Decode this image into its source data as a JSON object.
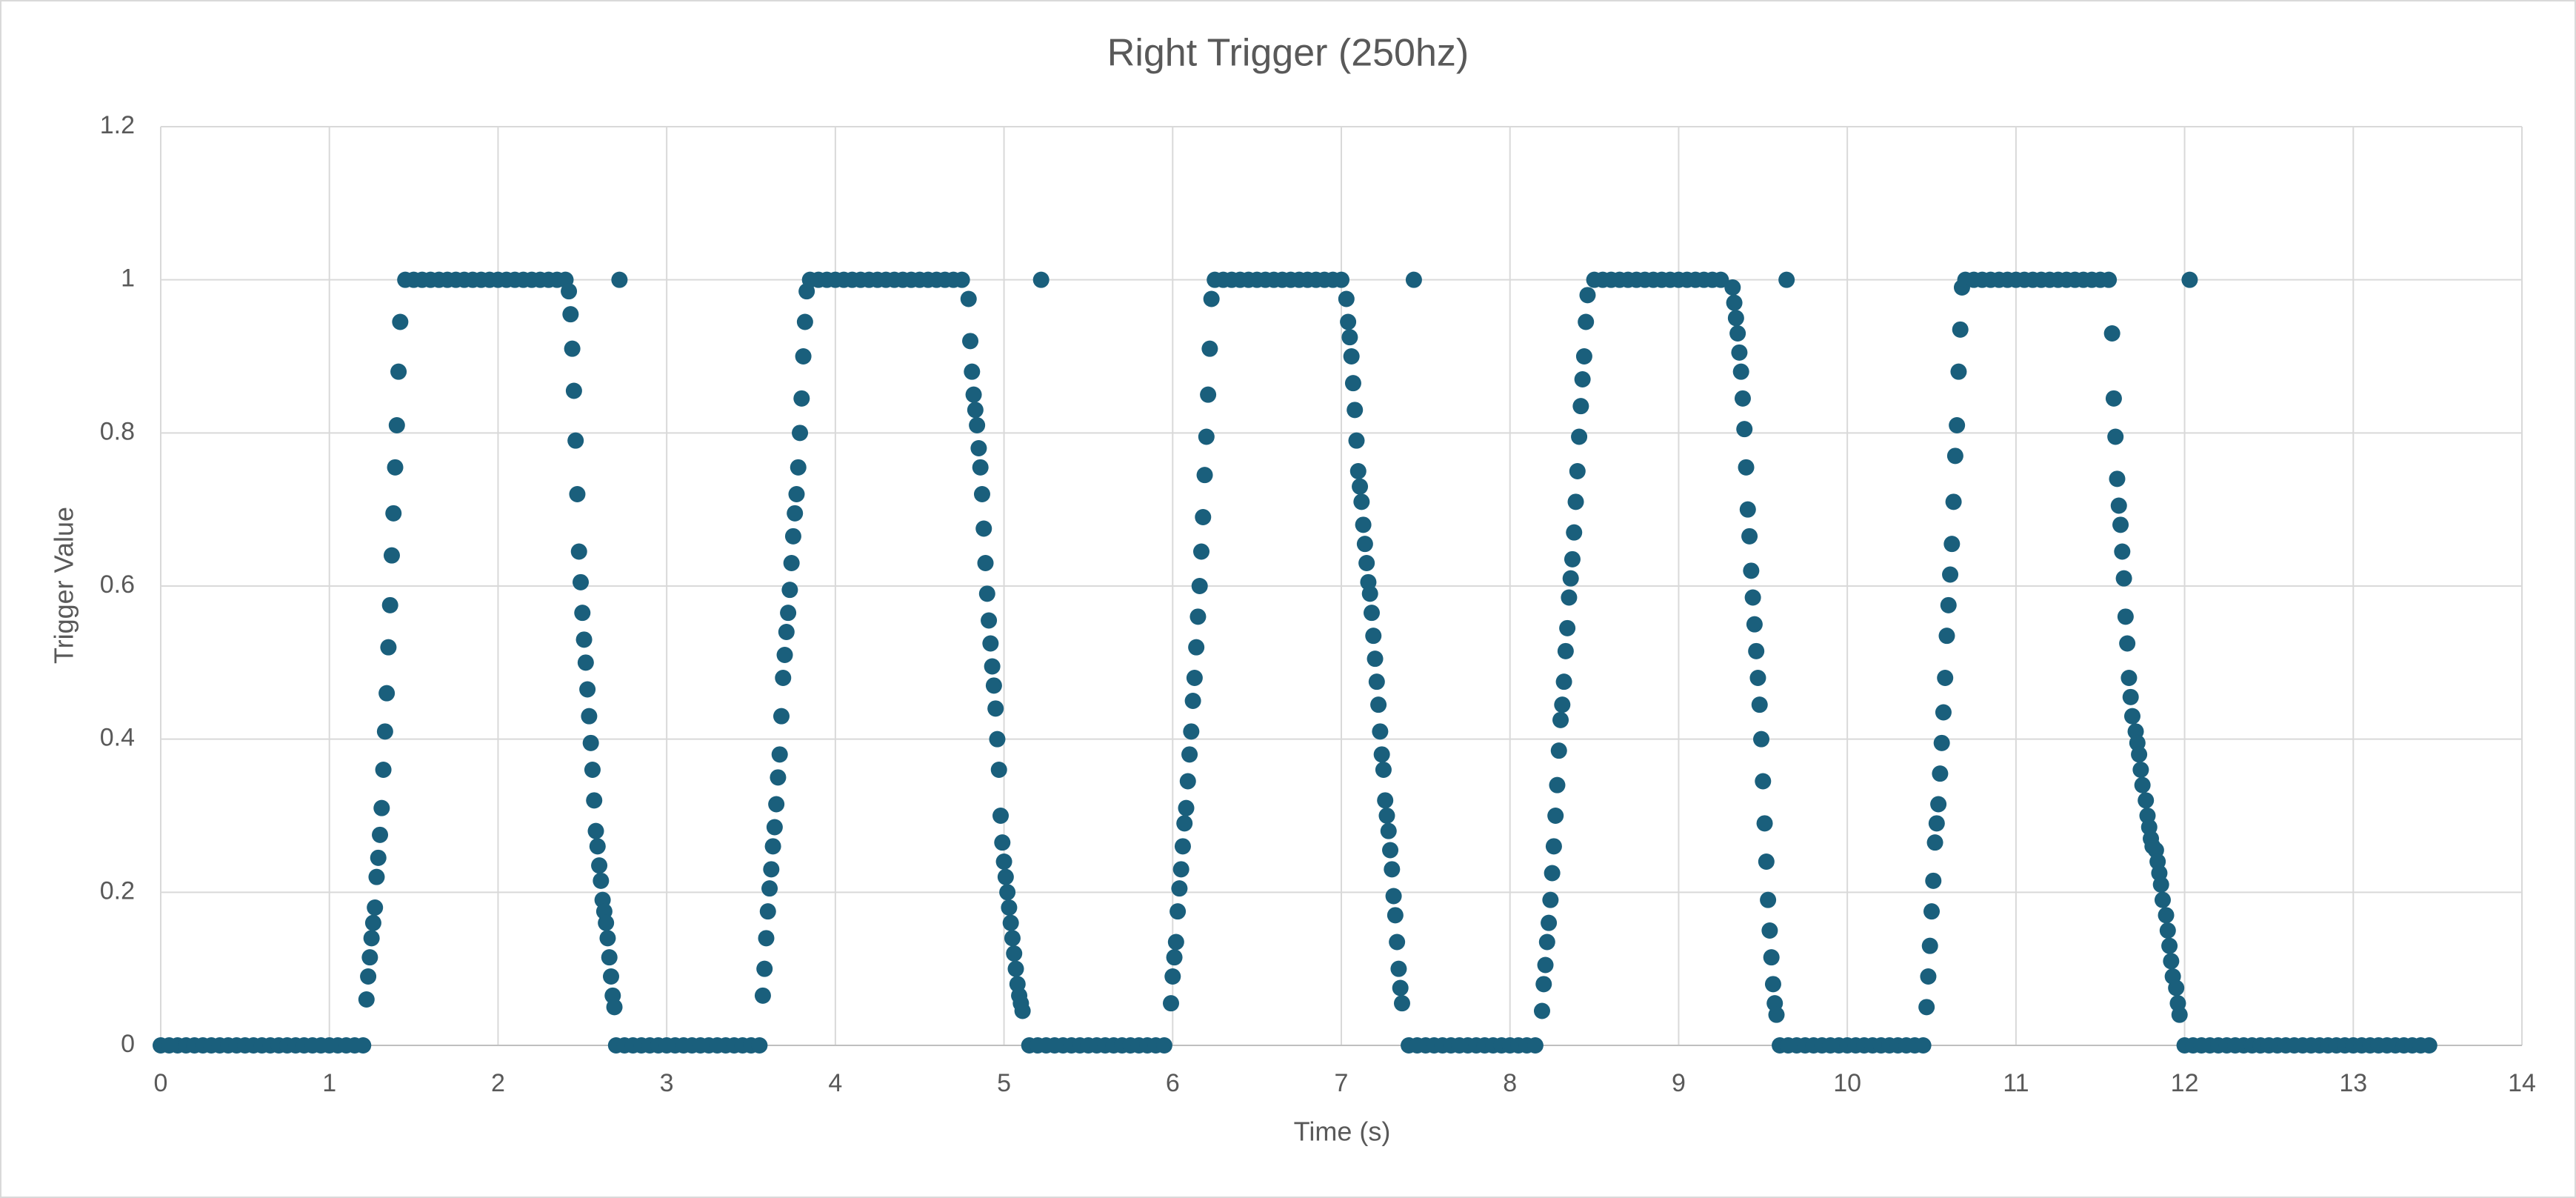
{
  "chart_data": {
    "type": "scatter",
    "title": "Right Trigger (250hz)",
    "x_label": "Time (s)",
    "y_label": "Trigger Value",
    "color": "#1a5f7c",
    "grid": true,
    "xlim": [
      0,
      14
    ],
    "xticks": [
      0,
      1,
      2,
      3,
      4,
      5,
      6,
      7,
      8,
      9,
      10,
      11,
      12,
      13,
      14
    ],
    "ylim": [
      0,
      1.2
    ],
    "yticks": [
      0,
      0.2,
      0.4,
      0.6,
      0.8,
      1,
      1.2
    ],
    "x": [
      0,
      0.05,
      0.1,
      0.15,
      0.2,
      0.25,
      0.3,
      0.35,
      0.4,
      0.45,
      0.5,
      0.55,
      0.6,
      0.65,
      0.7,
      0.75,
      0.8,
      0.85,
      0.9,
      0.95,
      1,
      1.05,
      1.1,
      1.15,
      1.2,
      1.22,
      1.23,
      1.24,
      1.25,
      1.26,
      1.27,
      1.28,
      1.29,
      1.3,
      1.31,
      1.32,
      1.33,
      1.34,
      1.35,
      1.36,
      1.37,
      1.38,
      1.39,
      1.4,
      1.41,
      1.42,
      1.45,
      1.5,
      1.55,
      1.6,
      1.65,
      1.7,
      1.75,
      1.8,
      1.85,
      1.9,
      1.95,
      2,
      2.05,
      2.1,
      2.15,
      2.2,
      2.25,
      2.3,
      2.35,
      2.4,
      2.42,
      2.43,
      2.44,
      2.45,
      2.46,
      2.47,
      2.48,
      2.49,
      2.5,
      2.51,
      2.52,
      2.53,
      2.54,
      2.55,
      2.56,
      2.57,
      2.58,
      2.59,
      2.6,
      2.61,
      2.62,
      2.63,
      2.64,
      2.65,
      2.66,
      2.67,
      2.68,
      2.69,
      2.72,
      2.7,
      2.75,
      2.8,
      2.85,
      2.9,
      2.95,
      3,
      3.05,
      3.1,
      3.15,
      3.2,
      3.25,
      3.3,
      3.35,
      3.4,
      3.45,
      3.5,
      3.55,
      3.57,
      3.58,
      3.59,
      3.6,
      3.61,
      3.62,
      3.63,
      3.64,
      3.65,
      3.66,
      3.67,
      3.68,
      3.69,
      3.7,
      3.71,
      3.72,
      3.73,
      3.74,
      3.75,
      3.76,
      3.77,
      3.78,
      3.79,
      3.8,
      3.81,
      3.82,
      3.83,
      3.85,
      3.9,
      3.95,
      4,
      4.05,
      4.1,
      4.15,
      4.2,
      4.25,
      4.3,
      4.35,
      4.4,
      4.45,
      4.5,
      4.55,
      4.6,
      4.65,
      4.7,
      4.75,
      4.79,
      4.8,
      4.81,
      4.82,
      4.83,
      4.84,
      4.85,
      4.86,
      4.87,
      4.88,
      4.89,
      4.9,
      4.91,
      4.92,
      4.93,
      4.94,
      4.95,
      4.96,
      4.97,
      4.98,
      4.99,
      5,
      5.01,
      5.02,
      5.03,
      5.04,
      5.05,
      5.06,
      5.07,
      5.08,
      5.09,
      5.1,
      5.11,
      5.22,
      5.15,
      5.2,
      5.25,
      5.3,
      5.35,
      5.4,
      5.45,
      5.5,
      5.55,
      5.6,
      5.65,
      5.7,
      5.75,
      5.8,
      5.85,
      5.9,
      5.95,
      5.99,
      6,
      6.01,
      6.02,
      6.03,
      6.04,
      6.05,
      6.06,
      6.07,
      6.08,
      6.09,
      6.1,
      6.11,
      6.12,
      6.13,
      6.14,
      6.15,
      6.16,
      6.17,
      6.18,
      6.19,
      6.2,
      6.21,
      6.22,
      6.23,
      6.25,
      6.3,
      6.35,
      6.4,
      6.45,
      6.5,
      6.55,
      6.6,
      6.65,
      6.7,
      6.75,
      6.8,
      6.85,
      6.9,
      6.95,
      7,
      7.03,
      7.04,
      7.05,
      7.06,
      7.07,
      7.08,
      7.09,
      7.1,
      7.11,
      7.12,
      7.13,
      7.14,
      7.15,
      7.16,
      7.17,
      7.18,
      7.19,
      7.2,
      7.21,
      7.22,
      7.23,
      7.24,
      7.25,
      7.26,
      7.27,
      7.28,
      7.29,
      7.3,
      7.31,
      7.32,
      7.33,
      7.34,
      7.35,
      7.36,
      7.43,
      7.4,
      7.45,
      7.5,
      7.55,
      7.6,
      7.65,
      7.7,
      7.75,
      7.8,
      7.85,
      7.9,
      7.95,
      8,
      8.05,
      8.1,
      8.15,
      8.19,
      8.2,
      8.21,
      8.22,
      8.23,
      8.24,
      8.25,
      8.26,
      8.27,
      8.28,
      8.29,
      8.3,
      8.31,
      8.32,
      8.33,
      8.34,
      8.35,
      8.36,
      8.37,
      8.38,
      8.39,
      8.4,
      8.41,
      8.42,
      8.43,
      8.44,
      8.45,
      8.46,
      8.5,
      8.55,
      8.6,
      8.65,
      8.7,
      8.75,
      8.8,
      8.85,
      8.9,
      8.95,
      9,
      9.05,
      9.1,
      9.15,
      9.2,
      9.25,
      9.32,
      9.33,
      9.34,
      9.35,
      9.36,
      9.37,
      9.38,
      9.39,
      9.4,
      9.41,
      9.42,
      9.43,
      9.44,
      9.45,
      9.46,
      9.47,
      9.48,
      9.49,
      9.5,
      9.51,
      9.52,
      9.53,
      9.54,
      9.55,
      9.56,
      9.57,
      9.58,
      9.64,
      9.6,
      9.65,
      9.7,
      9.75,
      9.8,
      9.85,
      9.9,
      9.95,
      10,
      10.05,
      10.1,
      10.15,
      10.2,
      10.25,
      10.3,
      10.35,
      10.4,
      10.45,
      10.47,
      10.48,
      10.49,
      10.5,
      10.51,
      10.52,
      10.53,
      10.54,
      10.55,
      10.56,
      10.57,
      10.58,
      10.59,
      10.6,
      10.61,
      10.62,
      10.63,
      10.64,
      10.65,
      10.66,
      10.67,
      10.68,
      10.7,
      10.75,
      10.8,
      10.85,
      10.9,
      10.95,
      11,
      11.05,
      11.1,
      11.15,
      11.2,
      11.25,
      11.3,
      11.35,
      11.4,
      11.45,
      11.5,
      11.55,
      11.57,
      11.58,
      11.59,
      11.6,
      11.61,
      11.62,
      11.63,
      11.64,
      11.65,
      11.66,
      11.67,
      11.68,
      11.69,
      11.71,
      11.72,
      11.73,
      11.74,
      11.75,
      11.77,
      11.78,
      11.79,
      11.8,
      11.81,
      11.83,
      11.84,
      11.85,
      11.86,
      11.87,
      11.89,
      11.9,
      11.91,
      11.92,
      11.93,
      11.95,
      11.96,
      11.97,
      12.03,
      12,
      12.05,
      12.1,
      12.15,
      12.2,
      12.25,
      12.3,
      12.35,
      12.4,
      12.45,
      12.5,
      12.55,
      12.6,
      12.65,
      12.7,
      12.75,
      12.8,
      12.85,
      12.9,
      12.95,
      13,
      13.05,
      13.1,
      13.15,
      13.2,
      13.25,
      13.3,
      13.35,
      13.4,
      13.45
    ],
    "values": [
      0,
      0,
      0,
      0,
      0,
      0,
      0,
      0,
      0,
      0,
      0,
      0,
      0,
      0,
      0,
      0,
      0,
      0,
      0,
      0,
      0,
      0,
      0,
      0,
      0,
      0.06,
      0.09,
      0.115,
      0.14,
      0.16,
      0.18,
      0.22,
      0.245,
      0.275,
      0.31,
      0.36,
      0.41,
      0.46,
      0.52,
      0.575,
      0.64,
      0.695,
      0.755,
      0.81,
      0.88,
      0.945,
      1,
      1,
      1,
      1,
      1,
      1,
      1,
      1,
      1,
      1,
      1,
      1,
      1,
      1,
      1,
      1,
      1,
      1,
      1,
      1,
      0.985,
      0.955,
      0.91,
      0.855,
      0.79,
      0.72,
      0.645,
      0.605,
      0.565,
      0.53,
      0.5,
      0.465,
      0.43,
      0.395,
      0.36,
      0.32,
      0.28,
      0.26,
      0.235,
      0.215,
      0.19,
      0.175,
      0.16,
      0.14,
      0.115,
      0.09,
      0.065,
      0.05,
      1,
      0,
      0,
      0,
      0,
      0,
      0,
      0,
      0,
      0,
      0,
      0,
      0,
      0,
      0,
      0,
      0,
      0,
      0,
      0.065,
      0.1,
      0.14,
      0.175,
      0.205,
      0.23,
      0.26,
      0.285,
      0.315,
      0.35,
      0.38,
      0.43,
      0.48,
      0.51,
      0.54,
      0.565,
      0.595,
      0.63,
      0.665,
      0.695,
      0.72,
      0.755,
      0.8,
      0.845,
      0.9,
      0.945,
      0.985,
      1,
      1,
      1,
      1,
      1,
      1,
      1,
      1,
      1,
      1,
      1,
      1,
      1,
      1,
      1,
      1,
      1,
      1,
      1,
      0.975,
      0.92,
      0.88,
      0.85,
      0.83,
      0.81,
      0.78,
      0.755,
      0.72,
      0.675,
      0.63,
      0.59,
      0.555,
      0.525,
      0.495,
      0.47,
      0.44,
      0.4,
      0.36,
      0.3,
      0.265,
      0.24,
      0.22,
      0.2,
      0.18,
      0.16,
      0.14,
      0.12,
      0.1,
      0.08,
      0.065,
      0.055,
      0.045,
      1,
      0,
      0,
      0,
      0,
      0,
      0,
      0,
      0,
      0,
      0,
      0,
      0,
      0,
      0,
      0,
      0,
      0,
      0.055,
      0.09,
      0.115,
      0.135,
      0.175,
      0.205,
      0.23,
      0.26,
      0.29,
      0.31,
      0.345,
      0.38,
      0.41,
      0.45,
      0.48,
      0.52,
      0.56,
      0.6,
      0.645,
      0.69,
      0.745,
      0.795,
      0.85,
      0.91,
      0.975,
      1,
      1,
      1,
      1,
      1,
      1,
      1,
      1,
      1,
      1,
      1,
      1,
      1,
      1,
      1,
      1,
      0.975,
      0.945,
      0.925,
      0.9,
      0.865,
      0.83,
      0.79,
      0.75,
      0.73,
      0.71,
      0.68,
      0.655,
      0.63,
      0.605,
      0.59,
      0.565,
      0.535,
      0.505,
      0.475,
      0.445,
      0.41,
      0.38,
      0.36,
      0.32,
      0.3,
      0.28,
      0.255,
      0.23,
      0.195,
      0.17,
      0.135,
      0.1,
      0.075,
      0.055,
      1,
      0,
      0,
      0,
      0,
      0,
      0,
      0,
      0,
      0,
      0,
      0,
      0,
      0,
      0,
      0,
      0,
      0.045,
      0.08,
      0.105,
      0.135,
      0.16,
      0.19,
      0.225,
      0.26,
      0.3,
      0.34,
      0.385,
      0.425,
      0.445,
      0.475,
      0.515,
      0.545,
      0.585,
      0.61,
      0.635,
      0.67,
      0.71,
      0.75,
      0.795,
      0.835,
      0.87,
      0.9,
      0.945,
      0.98,
      1,
      1,
      1,
      1,
      1,
      1,
      1,
      1,
      1,
      1,
      1,
      1,
      1,
      1,
      1,
      1,
      0.99,
      0.97,
      0.95,
      0.93,
      0.905,
      0.88,
      0.845,
      0.805,
      0.755,
      0.7,
      0.665,
      0.62,
      0.585,
      0.55,
      0.515,
      0.48,
      0.445,
      0.4,
      0.345,
      0.29,
      0.24,
      0.19,
      0.15,
      0.115,
      0.08,
      0.055,
      0.04,
      1,
      0,
      0,
      0,
      0,
      0,
      0,
      0,
      0,
      0,
      0,
      0,
      0,
      0,
      0,
      0,
      0,
      0,
      0,
      0.05,
      0.09,
      0.13,
      0.175,
      0.215,
      0.265,
      0.29,
      0.315,
      0.355,
      0.395,
      0.435,
      0.48,
      0.535,
      0.575,
      0.615,
      0.655,
      0.71,
      0.77,
      0.81,
      0.88,
      0.935,
      0.99,
      1,
      1,
      1,
      1,
      1,
      1,
      1,
      1,
      1,
      1,
      1,
      1,
      1,
      1,
      1,
      1,
      1,
      1,
      0.93,
      0.845,
      0.795,
      0.74,
      0.705,
      0.68,
      0.645,
      0.61,
      0.56,
      0.525,
      0.48,
      0.455,
      0.43,
      0.41,
      0.395,
      0.38,
      0.36,
      0.34,
      0.32,
      0.3,
      0.285,
      0.27,
      0.26,
      0.255,
      0.24,
      0.225,
      0.21,
      0.19,
      0.17,
      0.15,
      0.13,
      0.11,
      0.09,
      0.075,
      0.055,
      0.04,
      1,
      0,
      0,
      0,
      0,
      0,
      0,
      0,
      0,
      0,
      0,
      0,
      0,
      0,
      0,
      0,
      0,
      0,
      0,
      0,
      0,
      0,
      0,
      0,
      0,
      0,
      0,
      0,
      0,
      0,
      0
    ]
  }
}
